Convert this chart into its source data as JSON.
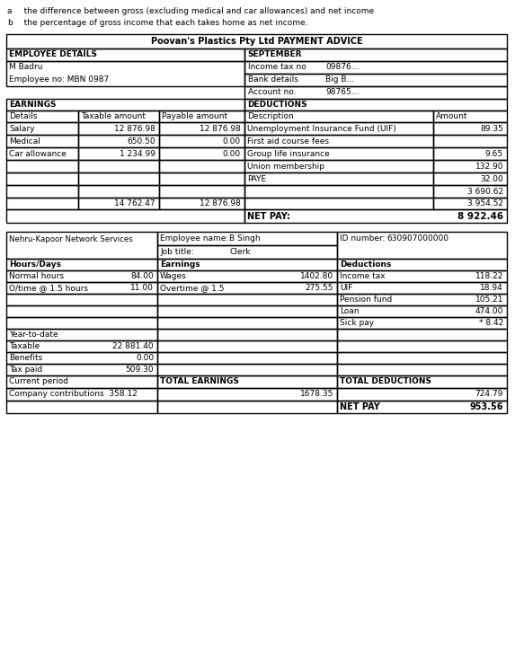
{
  "intro_lines": [
    [
      "a",
      "   the difference between gross (excluding medical and car allowances) and net income"
    ],
    [
      "b",
      "   the percentage of gross income that each takes home as net income."
    ]
  ],
  "table1": {
    "title": "Poovan's Plastics Pty Ltd PAYMENT ADVICE",
    "employee_details_header": "EMPLOYEE DETAILS",
    "september_header": "SEPTEMBER",
    "employee_name": "M Badru",
    "employee_no": "Employee no: MBN 0987",
    "income_tax_label": "Income tax no",
    "income_tax_val": "09876...",
    "bank_details_label": "Bank details",
    "bank_details_val": "Big B...",
    "account_no_label": "Account no.",
    "account_no_val": "98765...",
    "earnings_header": "EARNINGS",
    "deductions_header": "DEDUCTIONS",
    "earnings_rows": [
      [
        "Salary",
        "12 876.98",
        "12 876.98"
      ],
      [
        "Medical",
        "650.50",
        "0.00"
      ],
      [
        "Car allowance",
        "1 234.99",
        "0.00"
      ],
      [
        "",
        "",
        ""
      ],
      [
        "",
        "",
        ""
      ],
      [
        "",
        "",
        ""
      ]
    ],
    "deductions_rows": [
      [
        "Unemployment Insurance Fund (UIF)",
        "89.35"
      ],
      [
        "First aid course fees",
        ""
      ],
      [
        "Group life insurance",
        "9.65"
      ],
      [
        "Union membership",
        "132.90"
      ],
      [
        "PAYE",
        "32.00"
      ],
      [
        "",
        "3 690.62"
      ]
    ],
    "earnings_total_taxable": "14 762.47",
    "earnings_total_payable": "12 876.98",
    "deductions_total": "3 954.52",
    "net_pay_label": "NET PAY:",
    "net_pay_val": "8 922.46"
  },
  "table2": {
    "company": "Nehru-Kapoor Network Services",
    "employee_name_label": "Employee name:",
    "employee_name_val": "B Singh",
    "id_label": "ID number:",
    "id_val": "630907000000",
    "job_title_label": "Job title:",
    "job_title_val": "Clerk",
    "hours_days_header": "Hours/Days",
    "earnings_header": "Earnings",
    "deductions_header": "Deductions",
    "hours_rows": [
      [
        "Normal hours",
        "84.00"
      ],
      [
        "O/time @ 1.5 hours",
        "11.00"
      ],
      [
        "",
        ""
      ],
      [
        "",
        ""
      ],
      [
        "",
        ""
      ]
    ],
    "earnings_rows": [
      [
        "Wages",
        "1402.80"
      ],
      [
        "Overtime @ 1.5",
        "275.55"
      ],
      [
        "",
        ""
      ],
      [
        "",
        ""
      ],
      [
        "",
        ""
      ]
    ],
    "deductions_rows": [
      [
        "Income tax",
        "118.22"
      ],
      [
        "UIF",
        "18.94"
      ],
      [
        "Pension fund",
        "105.21"
      ],
      [
        "Loan",
        "474.00"
      ],
      [
        "Sick pay",
        "* 8.42"
      ]
    ],
    "ytd_header": "Year-to-date",
    "ytd_rows": [
      [
        "Taxable",
        "22 881.40"
      ],
      [
        "Benefits",
        "0.00"
      ],
      [
        "Tax paid",
        "509.30"
      ]
    ],
    "current_period": "Current period",
    "company_contributions": "Company contributions",
    "company_contributions_val": "358.12",
    "total_earnings_label": "TOTAL EARNINGS",
    "total_earnings_val": "1678.35",
    "total_deductions_label": "TOTAL DEDUCTIONS",
    "total_deductions_val": "724.79",
    "net_pay_label": "NET PAY",
    "net_pay_val": "953.56"
  },
  "bg_color": "#ffffff",
  "line_color": "#000000"
}
